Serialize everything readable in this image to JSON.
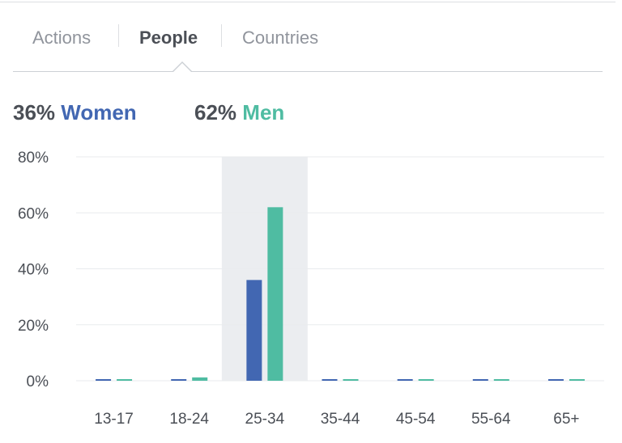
{
  "tabs": [
    {
      "label": "Actions",
      "active": false
    },
    {
      "label": "People",
      "active": true
    },
    {
      "label": "Countries",
      "active": false
    }
  ],
  "summary": {
    "women_pct": "36%",
    "women_label": "Women",
    "men_pct": "62%",
    "men_label": "Men"
  },
  "colors": {
    "women": "#4267b2",
    "men": "#4fbca2",
    "highlight": "#ebedf0",
    "grid": "#e9ebee",
    "axis_text": "#4b4f56"
  },
  "chart_data": {
    "type": "bar",
    "categories": [
      "13-17",
      "18-24",
      "25-34",
      "35-44",
      "45-54",
      "55-64",
      "65+"
    ],
    "series": [
      {
        "name": "Women",
        "values": [
          0.4,
          0.5,
          36,
          0.4,
          0.4,
          0.4,
          0.4
        ]
      },
      {
        "name": "Men",
        "values": [
          0.4,
          1.2,
          62,
          0.4,
          0.4,
          0.4,
          0.4
        ]
      }
    ],
    "yticks": [
      "0%",
      "20%",
      "40%",
      "60%",
      "80%"
    ],
    "ylim": [
      0,
      80
    ],
    "highlighted_category": "25-34",
    "grid": true
  }
}
